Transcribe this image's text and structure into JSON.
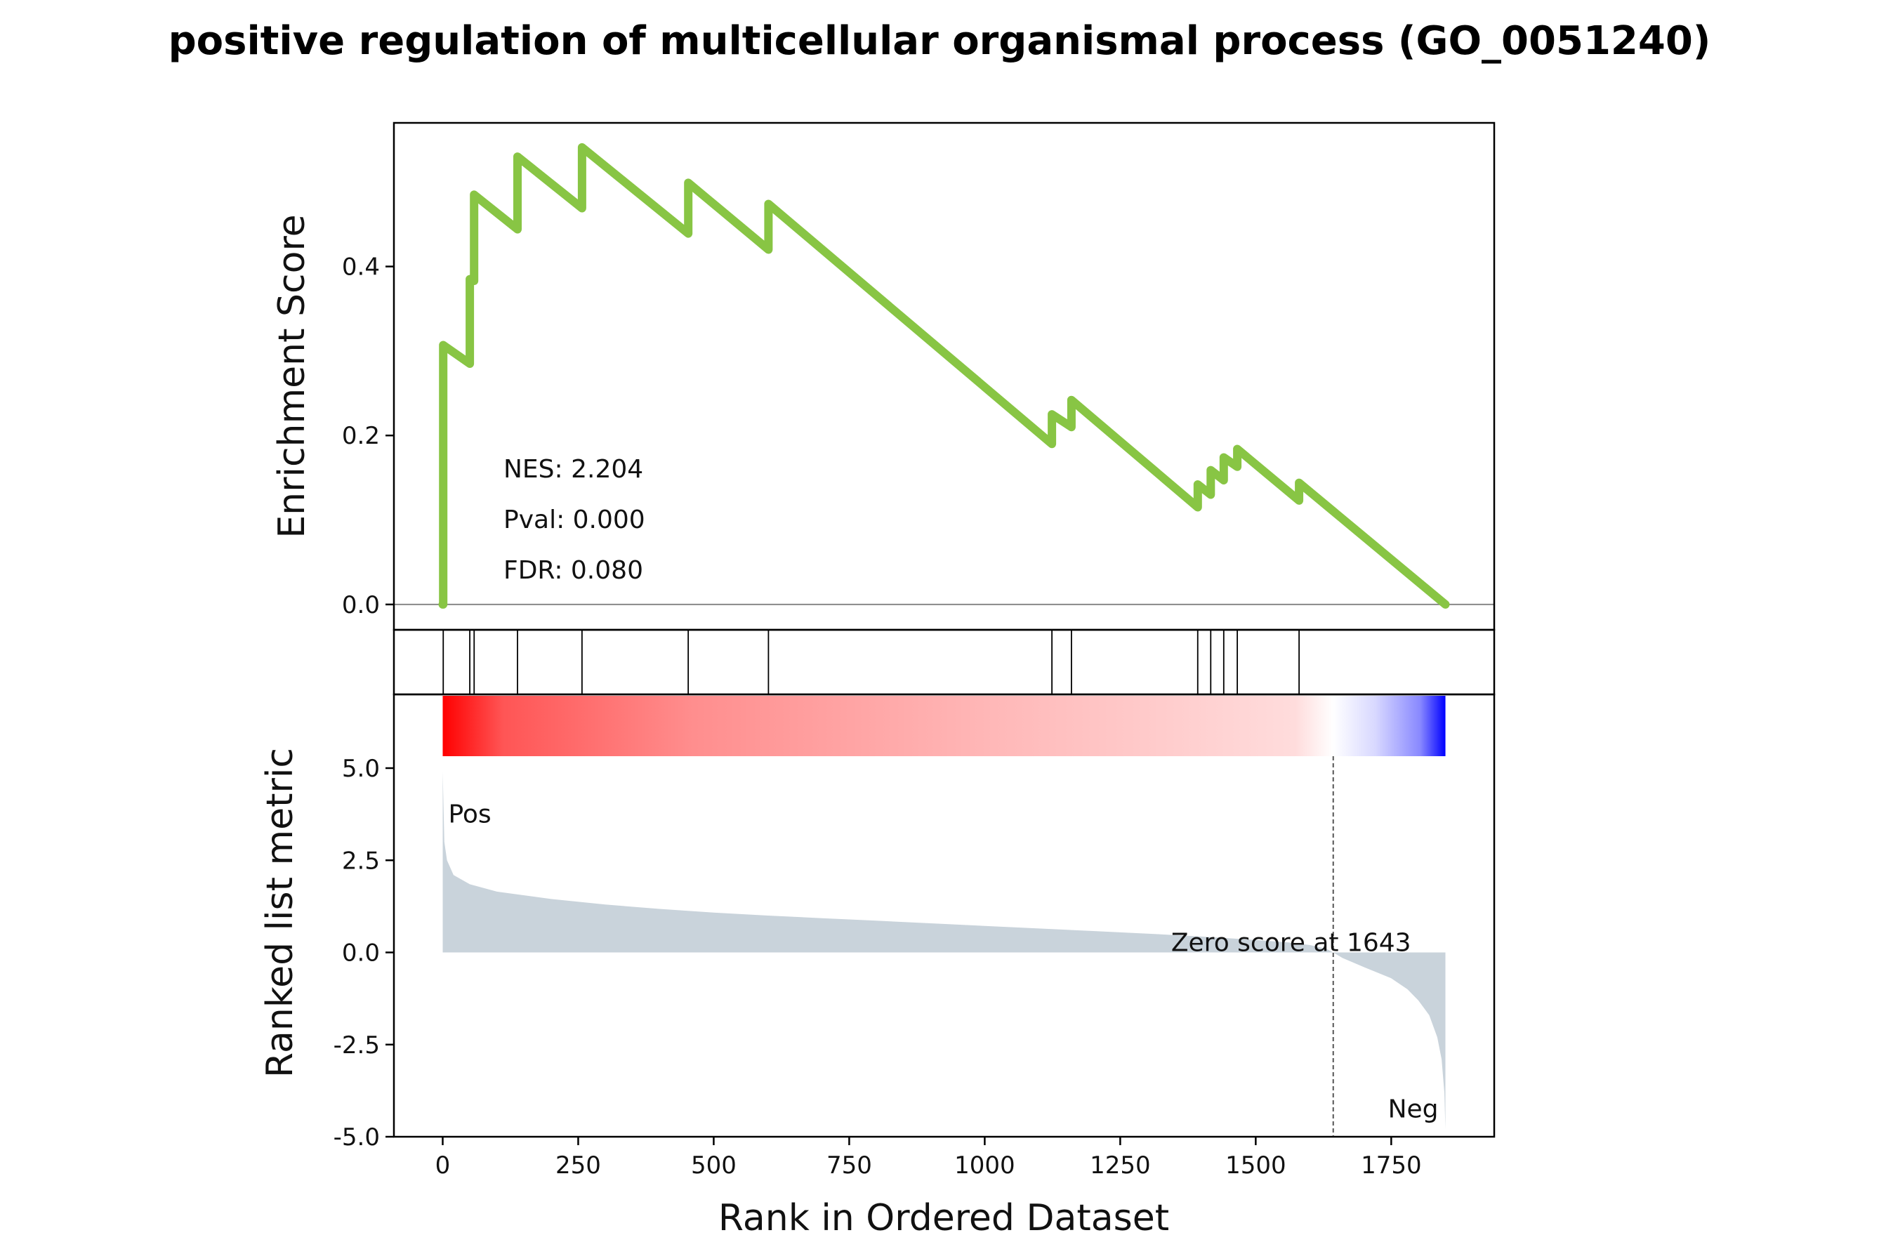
{
  "chart_data": {
    "type": "line",
    "title": "positive regulation of multicellular organismal process (GO_0051240)",
    "xlabel": "Rank in Ordered Dataset",
    "xlim": [
      -90,
      1940
    ],
    "xticks": [
      0,
      250,
      500,
      750,
      1000,
      1250,
      1500,
      1750
    ],
    "n_genes": 1850,
    "colors": {
      "es_line": "#88C544",
      "metric_fill": "#C9D3DB",
      "pos": "#FF0000",
      "neg": "#0000FF"
    },
    "es_panel": {
      "ylabel": "Enrichment Score",
      "ylim": [
        -0.03,
        0.57
      ],
      "yticks": [
        {
          "value": 0.0,
          "label": "0.0"
        },
        {
          "value": 0.2,
          "label": "0.2"
        },
        {
          "value": 0.4,
          "label": "0.4"
        }
      ],
      "points": [
        [
          0,
          0.0
        ],
        [
          1,
          0.0
        ],
        [
          1,
          0.307
        ],
        [
          50,
          0.285
        ],
        [
          50,
          0.385
        ],
        [
          58,
          0.383
        ],
        [
          58,
          0.485
        ],
        [
          138,
          0.444
        ],
        [
          138,
          0.53
        ],
        [
          257,
          0.469
        ],
        [
          257,
          0.541
        ],
        [
          453,
          0.439
        ],
        [
          453,
          0.499
        ],
        [
          601,
          0.42
        ],
        [
          601,
          0.474
        ],
        [
          1124,
          0.19
        ],
        [
          1124,
          0.225
        ],
        [
          1160,
          0.21
        ],
        [
          1160,
          0.242
        ],
        [
          1393,
          0.115
        ],
        [
          1393,
          0.142
        ],
        [
          1417,
          0.13
        ],
        [
          1417,
          0.159
        ],
        [
          1441,
          0.147
        ],
        [
          1441,
          0.174
        ],
        [
          1466,
          0.163
        ],
        [
          1466,
          0.184
        ],
        [
          1580,
          0.123
        ],
        [
          1580,
          0.144
        ],
        [
          1850,
          0.0
        ]
      ],
      "stats": {
        "nes": "NES: 2.204",
        "pval": "Pval: 0.000",
        "fdr": "FDR: 0.080"
      }
    },
    "hits": [
      1,
      50,
      58,
      138,
      257,
      453,
      601,
      1124,
      1160,
      1393,
      1417,
      1441,
      1466,
      1580
    ],
    "metric_panel": {
      "ylabel": "Ranked list metric",
      "ylim": [
        -5.0,
        7.0
      ],
      "yticks": [
        {
          "value": 5.0,
          "label": "5.0"
        },
        {
          "value": 2.5,
          "label": "2.5"
        },
        {
          "value": 0.0,
          "label": "0.0"
        },
        {
          "value": -2.5,
          "label": "-2.5"
        },
        {
          "value": -5.0,
          "label": "-5.0"
        }
      ],
      "curve": [
        [
          0,
          4.9
        ],
        [
          3,
          3.0
        ],
        [
          8,
          2.5
        ],
        [
          20,
          2.1
        ],
        [
          50,
          1.85
        ],
        [
          100,
          1.65
        ],
        [
          200,
          1.45
        ],
        [
          300,
          1.3
        ],
        [
          400,
          1.18
        ],
        [
          500,
          1.08
        ],
        [
          600,
          1.0
        ],
        [
          700,
          0.93
        ],
        [
          800,
          0.86
        ],
        [
          900,
          0.79
        ],
        [
          1000,
          0.72
        ],
        [
          1100,
          0.65
        ],
        [
          1200,
          0.58
        ],
        [
          1300,
          0.51
        ],
        [
          1400,
          0.43
        ],
        [
          1500,
          0.34
        ],
        [
          1560,
          0.27
        ],
        [
          1600,
          0.2
        ],
        [
          1630,
          0.1
        ],
        [
          1643,
          0.0
        ],
        [
          1660,
          -0.15
        ],
        [
          1700,
          -0.4
        ],
        [
          1750,
          -0.7
        ],
        [
          1780,
          -1.0
        ],
        [
          1800,
          -1.3
        ],
        [
          1820,
          -1.7
        ],
        [
          1835,
          -2.3
        ],
        [
          1843,
          -2.9
        ],
        [
          1848,
          -3.8
        ],
        [
          1850,
          -4.8
        ]
      ],
      "pos_label": "Pos",
      "neg_label": "Neg",
      "zero_rank": 1643,
      "zero_label": "Zero score at 1643"
    }
  }
}
